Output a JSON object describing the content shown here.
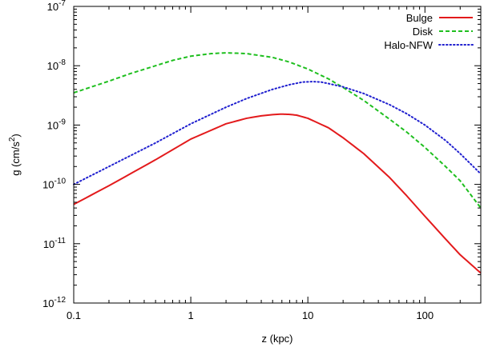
{
  "chart_data": {
    "type": "line",
    "xscale": "log",
    "yscale": "log",
    "xlim": [
      0.1,
      300
    ],
    "ylim": [
      1e-12,
      1e-07
    ],
    "xlabel": "z (kpc)",
    "ylabel": "g (cm/s²)",
    "ylabel_parts": {
      "base": "g (cm/s",
      "sup": "2",
      "end": ")"
    },
    "x_ticks": [
      {
        "value": 0.1,
        "label": "0.1"
      },
      {
        "value": 1,
        "label": "1"
      },
      {
        "value": 10,
        "label": "10"
      },
      {
        "value": 100,
        "label": "100"
      }
    ],
    "y_ticks": [
      {
        "value": 1e-12,
        "base": "10",
        "exp": "-12"
      },
      {
        "value": 1e-11,
        "base": "10",
        "exp": "-11"
      },
      {
        "value": 1e-10,
        "base": "10",
        "exp": "-10"
      },
      {
        "value": 1e-09,
        "base": "10",
        "exp": "-9"
      },
      {
        "value": 1e-08,
        "base": "10",
        "exp": "-8"
      },
      {
        "value": 1e-07,
        "base": "10",
        "exp": "-7"
      }
    ],
    "grid": false,
    "legend_position": "top-right",
    "series": [
      {
        "name": "Bulge",
        "color": "#e31a1c",
        "dash": "solid",
        "points": [
          [
            0.1,
            4.6e-11
          ],
          [
            0.2,
            9.5e-11
          ],
          [
            0.5,
            2.6e-10
          ],
          [
            1,
            5.8e-10
          ],
          [
            2,
            1.05e-09
          ],
          [
            3,
            1.3e-09
          ],
          [
            4,
            1.43e-09
          ],
          [
            5,
            1.5e-09
          ],
          [
            6,
            1.53e-09
          ],
          [
            7,
            1.51e-09
          ],
          [
            8,
            1.47e-09
          ],
          [
            10,
            1.3e-09
          ],
          [
            15,
            9e-10
          ],
          [
            20,
            6.1e-10
          ],
          [
            30,
            3.3e-10
          ],
          [
            50,
            1.3e-10
          ],
          [
            70,
            6.4e-11
          ],
          [
            100,
            2.9e-11
          ],
          [
            150,
            1.2e-11
          ],
          [
            200,
            6.5e-12
          ],
          [
            300,
            3.2e-12
          ]
        ]
      },
      {
        "name": "Disk",
        "color": "#1fbf1f",
        "dash": "dashed",
        "points": [
          [
            0.1,
            3.5e-09
          ],
          [
            0.2,
            5.5e-09
          ],
          [
            0.3,
            7.3e-09
          ],
          [
            0.5,
            1e-08
          ],
          [
            0.7,
            1.23e-08
          ],
          [
            1,
            1.45e-08
          ],
          [
            1.5,
            1.6e-08
          ],
          [
            2,
            1.65e-08
          ],
          [
            3,
            1.6e-08
          ],
          [
            5,
            1.38e-08
          ],
          [
            7,
            1.15e-08
          ],
          [
            10,
            8.8e-09
          ],
          [
            15,
            6e-09
          ],
          [
            20,
            4.3e-09
          ],
          [
            30,
            2.6e-09
          ],
          [
            50,
            1.25e-09
          ],
          [
            70,
            7.6e-10
          ],
          [
            100,
            4.2e-10
          ],
          [
            150,
            2e-10
          ],
          [
            200,
            1.15e-10
          ],
          [
            300,
            4e-11
          ]
        ]
      },
      {
        "name": "Halo-NFW",
        "color": "#1f1fcf",
        "dash": "dotted",
        "points": [
          [
            0.1,
            1e-10
          ],
          [
            0.2,
            2e-10
          ],
          [
            0.5,
            5e-10
          ],
          [
            1,
            1.05e-09
          ],
          [
            2,
            2e-09
          ],
          [
            3,
            2.8e-09
          ],
          [
            5,
            4e-09
          ],
          [
            7,
            4.8e-09
          ],
          [
            9,
            5.3e-09
          ],
          [
            11,
            5.4e-09
          ],
          [
            13,
            5.3e-09
          ],
          [
            15,
            5e-09
          ],
          [
            20,
            4.4e-09
          ],
          [
            30,
            3.4e-09
          ],
          [
            50,
            2.2e-09
          ],
          [
            70,
            1.55e-09
          ],
          [
            100,
            1e-09
          ],
          [
            150,
            5.5e-10
          ],
          [
            200,
            3.3e-10
          ],
          [
            300,
            1.5e-10
          ]
        ]
      }
    ]
  }
}
